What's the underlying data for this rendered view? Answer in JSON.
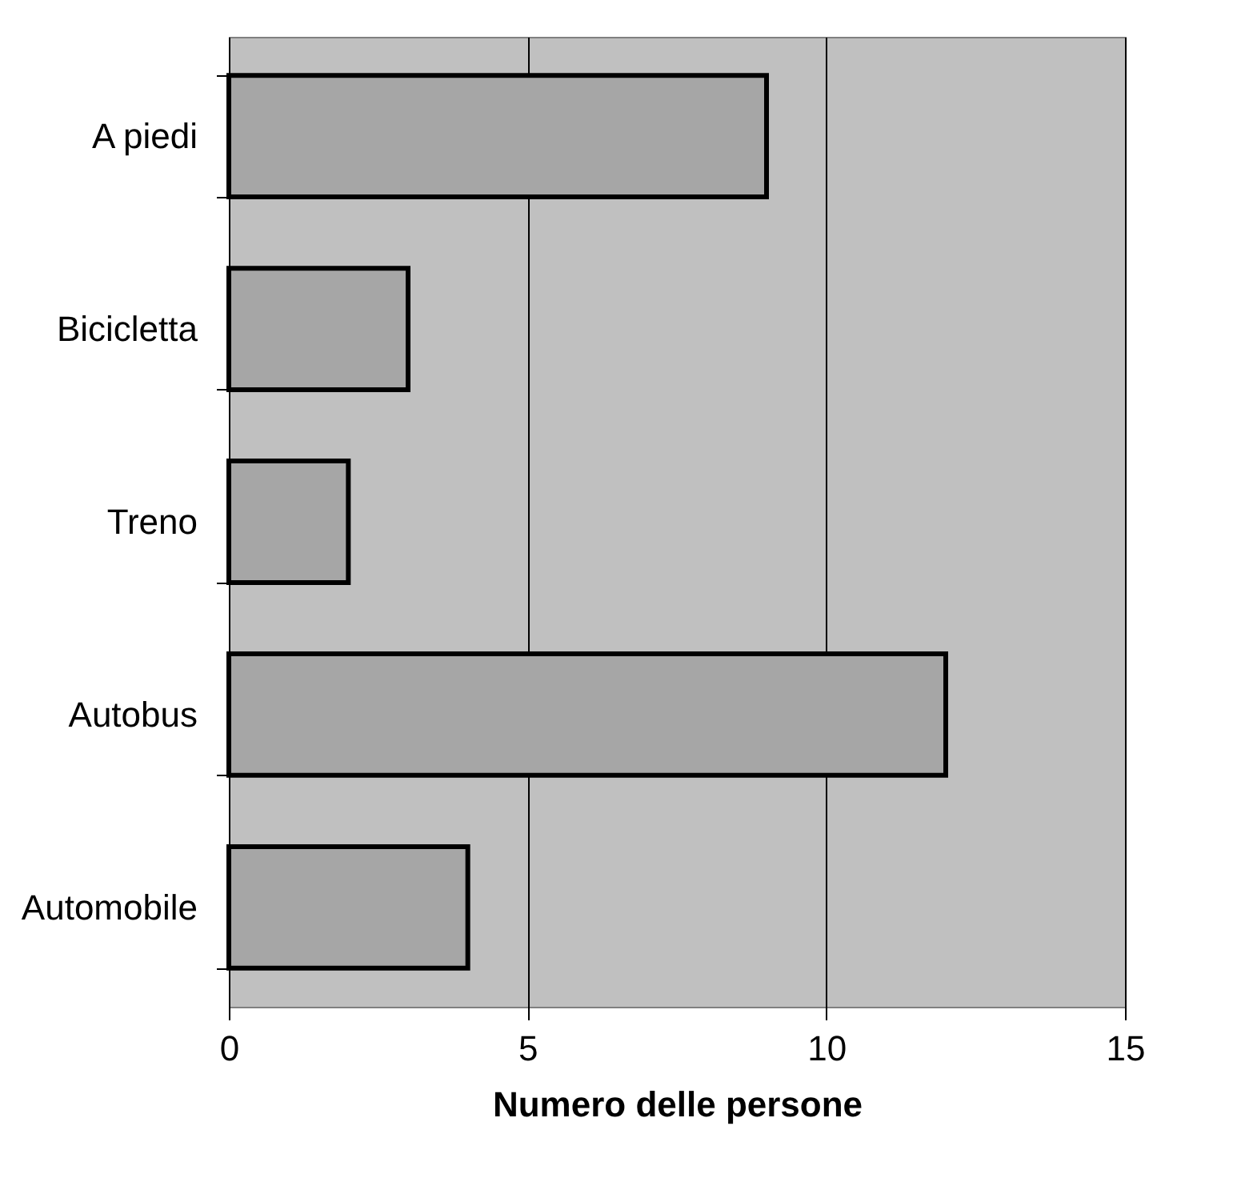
{
  "chart_data": {
    "type": "bar",
    "orientation": "horizontal",
    "xlabel": "Numero delle persone",
    "categories": [
      "A piedi",
      "Bicicletta",
      "Treno",
      "Autobus",
      "Automobile"
    ],
    "values": [
      9,
      3,
      2,
      12,
      4
    ],
    "color": "#a6a6a6",
    "xlim": [
      0,
      15
    ],
    "xticks": [
      0,
      5,
      10,
      15
    ],
    "grid": "x"
  }
}
